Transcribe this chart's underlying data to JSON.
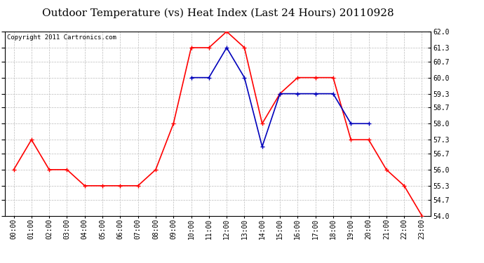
{
  "title": "Outdoor Temperature (vs) Heat Index (Last 24 Hours) 20110928",
  "copyright": "Copyright 2011 Cartronics.com",
  "hours": [
    "00:00",
    "01:00",
    "02:00",
    "03:00",
    "04:00",
    "05:00",
    "06:00",
    "07:00",
    "08:00",
    "09:00",
    "10:00",
    "11:00",
    "12:00",
    "13:00",
    "14:00",
    "15:00",
    "16:00",
    "17:00",
    "18:00",
    "19:00",
    "20:00",
    "21:00",
    "22:00",
    "23:00"
  ],
  "red_temp": [
    56.0,
    57.3,
    56.0,
    56.0,
    55.3,
    55.3,
    55.3,
    55.3,
    56.0,
    58.0,
    61.3,
    61.3,
    62.0,
    61.3,
    58.0,
    59.3,
    60.0,
    60.0,
    60.0,
    57.3,
    57.3,
    56.0,
    55.3,
    54.0
  ],
  "blue_temp": [
    null,
    null,
    null,
    null,
    null,
    null,
    null,
    null,
    null,
    null,
    60.0,
    60.0,
    61.3,
    60.0,
    57.0,
    59.3,
    59.3,
    59.3,
    59.3,
    58.0,
    58.0,
    null,
    null,
    null
  ],
  "red_color": "#ff0000",
  "blue_color": "#0000bb",
  "background_color": "#ffffff",
  "plot_bg_color": "#ffffff",
  "grid_color": "#bbbbbb",
  "ylim_min": 54.0,
  "ylim_max": 62.0,
  "yticks": [
    54.0,
    54.7,
    55.3,
    56.0,
    56.7,
    57.3,
    58.0,
    58.7,
    59.3,
    60.0,
    60.7,
    61.3,
    62.0
  ],
  "title_fontsize": 11,
  "copyright_fontsize": 6.5,
  "tick_fontsize": 7,
  "marker_size": 4,
  "line_width": 1.2
}
